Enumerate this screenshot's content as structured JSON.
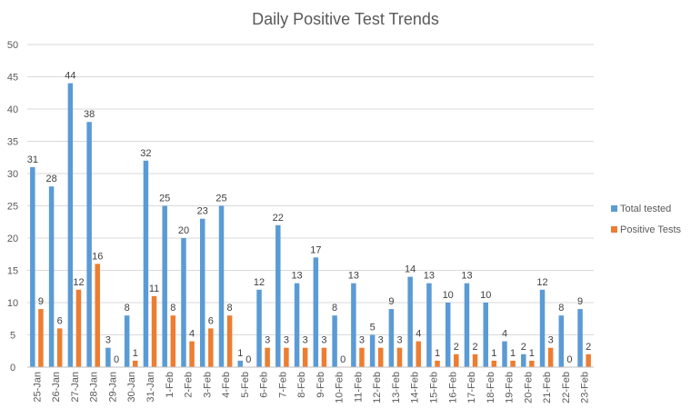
{
  "chart_data": {
    "type": "bar",
    "title": "Daily Positive Test Trends",
    "xlabel": "",
    "ylabel": "",
    "ylim": [
      0,
      50
    ],
    "yticks": [
      0,
      5,
      10,
      15,
      20,
      25,
      30,
      35,
      40,
      45,
      50
    ],
    "grid": true,
    "legend_position": "right",
    "categories": [
      "25-Jan",
      "26-Jan",
      "27-Jan",
      "28-Jan",
      "29-Jan",
      "30-Jan",
      "31-Jan",
      "1-Feb",
      "2-Feb",
      "3-Feb",
      "4-Feb",
      "5-Feb",
      "6-Feb",
      "7-Feb",
      "8-Feb",
      "9-Feb",
      "10-Feb",
      "11-Feb",
      "12-Feb",
      "13-Feb",
      "14-Feb",
      "15-Feb",
      "16-Feb",
      "17-Feb",
      "18-Feb",
      "19-Feb",
      "20-Feb",
      "21-Feb",
      "22-Feb",
      "23-Feb"
    ],
    "series": [
      {
        "name": "Total tested",
        "color": "#5b9bd5",
        "values": [
          31,
          28,
          44,
          38,
          3,
          8,
          32,
          25,
          20,
          23,
          25,
          1,
          12,
          22,
          13,
          17,
          8,
          13,
          5,
          9,
          14,
          13,
          10,
          13,
          10,
          4,
          2,
          12,
          8,
          9
        ]
      },
      {
        "name": "Positive Tests",
        "color": "#ed7d31",
        "values": [
          9,
          6,
          12,
          16,
          0,
          1,
          11,
          8,
          4,
          6,
          8,
          0,
          3,
          3,
          3,
          3,
          0,
          3,
          3,
          3,
          4,
          1,
          2,
          2,
          1,
          1,
          1,
          3,
          0,
          2
        ]
      }
    ]
  }
}
